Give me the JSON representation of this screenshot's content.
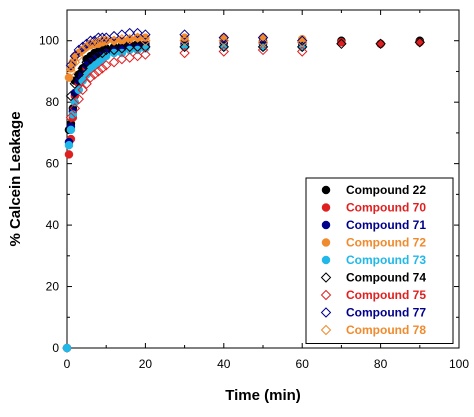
{
  "chart_data": {
    "type": "scatter",
    "xlabel": "Time (min)",
    "ylabel": "% Calcein Leakage",
    "xlim": [
      0,
      100
    ],
    "ylim": [
      0,
      110
    ],
    "xticks": [
      0,
      20,
      40,
      60,
      80,
      100
    ],
    "yticks": [
      0,
      20,
      40,
      60,
      80,
      100
    ],
    "legend_position": "bottom-right",
    "grid": false,
    "series": [
      {
        "name": "Compound 22",
        "color": "#000000",
        "marker": "filled-circle",
        "x": [
          0,
          0.5,
          1,
          1.5,
          2,
          3,
          4,
          5,
          6,
          7,
          8,
          9,
          10,
          12,
          14,
          16,
          18,
          20,
          30,
          40,
          50,
          60,
          70,
          80,
          90
        ],
        "y": [
          0,
          71,
          73,
          78,
          87,
          89,
          91,
          94,
          95,
          96,
          96.5,
          97,
          97.5,
          98,
          98.5,
          99,
          99,
          99,
          100,
          100,
          100,
          100,
          100,
          99,
          100
        ]
      },
      {
        "name": "Compound 70",
        "color": "#e02020",
        "marker": "filled-circle",
        "x": [
          0,
          0.5,
          1,
          1.5,
          2,
          3,
          4,
          5,
          6,
          7,
          8,
          9,
          10,
          12,
          14,
          16,
          18,
          20,
          30,
          40,
          50,
          60,
          70,
          80,
          90
        ],
        "y": [
          0,
          63,
          68,
          75,
          82,
          86,
          88,
          91,
          93,
          94,
          95,
          95.5,
          96,
          97,
          97,
          98,
          98,
          98,
          99,
          99,
          99,
          99,
          99.5,
          99,
          99.5
        ]
      },
      {
        "name": "Compound 71",
        "color": "#00008b",
        "marker": "filled-circle",
        "x": [
          0,
          0.5,
          1,
          1.5,
          2,
          3,
          4,
          5,
          6,
          7,
          8,
          9,
          10,
          12,
          14,
          16,
          18,
          20,
          30,
          40,
          50,
          60
        ],
        "y": [
          0,
          67,
          72,
          77,
          83,
          87,
          89,
          92,
          93,
          94,
          95,
          96,
          96,
          97,
          97.5,
          98,
          98,
          98.5,
          99,
          99.5,
          99,
          99
        ]
      },
      {
        "name": "Compound 72",
        "color": "#f08a2c",
        "marker": "filled-circle",
        "x": [
          0,
          0.5,
          1,
          1.5,
          2,
          3,
          4,
          5,
          6,
          7,
          8,
          9,
          10,
          12,
          14,
          16,
          18,
          20,
          30,
          40,
          50,
          60
        ],
        "y": [
          0,
          88,
          91,
          93,
          95,
          96,
          97,
          98,
          98.5,
          99,
          99,
          99.5,
          100,
          100,
          100,
          100.5,
          101,
          101,
          101,
          101,
          101,
          100.5
        ]
      },
      {
        "name": "Compound 73",
        "color": "#20b8e8",
        "marker": "filled-circle",
        "x": [
          0,
          0.5,
          1,
          1.5,
          2,
          3,
          4,
          5,
          6,
          7,
          8,
          9,
          10,
          12,
          14,
          16,
          18,
          20,
          30,
          40,
          50,
          60
        ],
        "y": [
          0,
          66,
          71,
          76,
          80,
          84,
          87,
          89,
          91,
          92,
          93,
          94,
          95,
          96,
          96,
          97,
          97,
          97.5,
          98,
          98,
          98,
          98
        ]
      },
      {
        "name": "Compound 74",
        "color": "#000000",
        "marker": "open-diamond",
        "x": [
          1,
          2,
          3,
          4,
          5,
          6,
          7,
          8,
          9,
          10,
          12,
          14,
          16,
          18,
          20,
          30,
          40,
          50,
          60,
          70,
          80,
          90
        ],
        "y": [
          82,
          86,
          89,
          91,
          93,
          94,
          95,
          96,
          96,
          97,
          97,
          97.5,
          98,
          98,
          98,
          98,
          98,
          98,
          98,
          99,
          99,
          99.5
        ]
      },
      {
        "name": "Compound 75",
        "color": "#e02020",
        "marker": "open-diamond",
        "x": [
          1,
          2,
          3,
          4,
          5,
          6,
          7,
          8,
          9,
          10,
          12,
          14,
          16,
          18,
          20,
          30,
          40,
          50,
          60
        ],
        "y": [
          75,
          78,
          81,
          84,
          86,
          88,
          89,
          90,
          91,
          92,
          93,
          94,
          94.5,
          95,
          95.5,
          96,
          96.5,
          97,
          96.5
        ]
      },
      {
        "name": "Compound 77",
        "color": "#00008b",
        "marker": "open-diamond",
        "x": [
          1,
          2,
          3,
          4,
          5,
          6,
          7,
          8,
          9,
          10,
          12,
          14,
          16,
          18,
          20,
          30,
          40,
          50,
          60
        ],
        "y": [
          92,
          95,
          97,
          98,
          99,
          100,
          100,
          101,
          101,
          101,
          101.5,
          102,
          102.5,
          102.5,
          102,
          102,
          101,
          101,
          100
        ]
      },
      {
        "name": "Compound 78",
        "color": "#f08a2c",
        "marker": "open-diamond",
        "x": [
          1,
          2,
          3,
          4,
          5,
          6,
          7,
          8,
          9,
          10,
          12,
          14,
          16,
          18,
          20,
          30,
          40,
          50,
          60
        ],
        "y": [
          90,
          93,
          95,
          97,
          98,
          99,
          99,
          99.5,
          100,
          100,
          100,
          100.5,
          100.5,
          101,
          100,
          100,
          100,
          99.5,
          99.5
        ]
      }
    ]
  }
}
